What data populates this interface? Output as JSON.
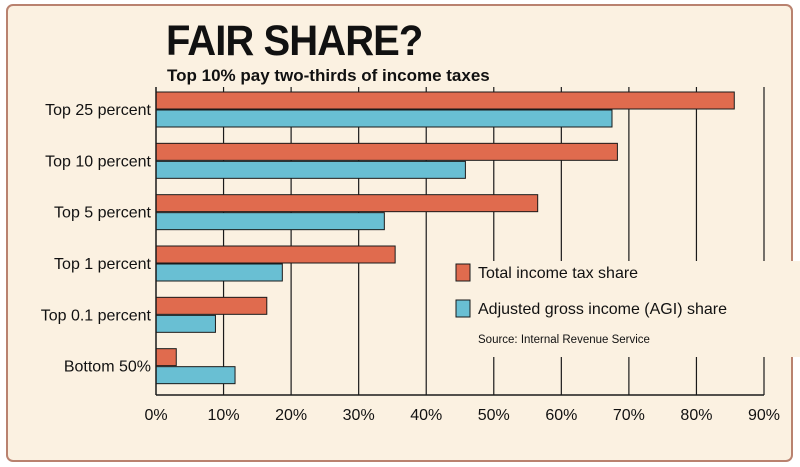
{
  "header": {
    "title": "FAIR SHARE?",
    "subtitle": "Top 10% pay two-thirds of income taxes"
  },
  "source": "Source: Internal Revenue Service",
  "colors": {
    "tax_share": "#e06b4e",
    "agi_share": "#69bfd3",
    "background": "#fbf1e1",
    "grid": "#1a1a1a"
  },
  "chart_data": {
    "type": "bar",
    "orientation": "horizontal",
    "categories": [
      "Top 25 percent",
      "Top 10 percent",
      "Top 5 percent",
      "Top 1 percent",
      "Top 0.1 percent",
      "Bottom 50%"
    ],
    "series": [
      {
        "name": "Total income tax share",
        "values": [
          85.6,
          68.3,
          56.5,
          35.4,
          16.4,
          3.0
        ]
      },
      {
        "name": "Adjusted gross income (AGI) share",
        "values": [
          67.5,
          45.8,
          33.8,
          18.7,
          8.8,
          11.7
        ]
      }
    ],
    "xlim": [
      0,
      90
    ],
    "x_ticks": [
      "0%",
      "10%",
      "20%",
      "30%",
      "40%",
      "50%",
      "60%",
      "70%",
      "80%",
      "90%"
    ],
    "grid": true,
    "legend_position": "right"
  }
}
